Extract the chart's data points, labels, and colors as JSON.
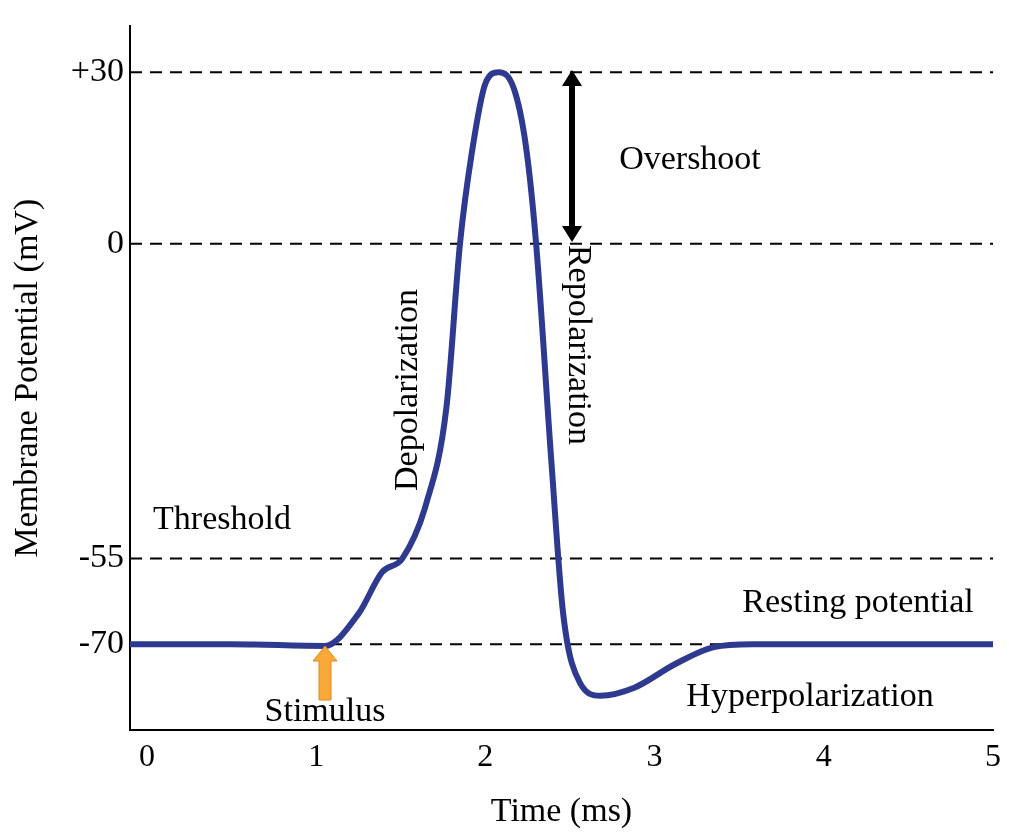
{
  "chart_data": {
    "type": "line",
    "xlabel": "Time (ms)",
    "ylabel": "Membrane Potential (mV)",
    "x": [
      -0.1,
      0.5,
      1.05,
      1.25,
      1.39,
      1.51,
      1.65,
      1.77,
      1.85,
      1.92,
      2.0,
      2.08,
      2.17,
      2.24,
      2.3,
      2.39,
      2.46,
      2.56,
      2.68,
      2.88,
      3.12,
      3.35,
      3.58,
      4.3,
      5.0
    ],
    "series": [
      {
        "color": "#2e3a8f",
        "values": [
          -70,
          -70,
          -70.3,
          -64.7,
          -57.4,
          -55,
          -45.5,
          -28.6,
          0,
          15.9,
          28,
          30,
          27,
          17,
          0,
          -38,
          -64.7,
          -76.8,
          -79,
          -77.6,
          -73.5,
          -70.5,
          -70,
          -70,
          -70
        ]
      }
    ],
    "xlim": [
      -0.1,
      5
    ],
    "ylim": [
      -85,
      38
    ],
    "xticks": [
      0,
      1,
      2,
      3,
      4,
      5
    ],
    "yticks": [
      {
        "value": 30,
        "label": "+30"
      },
      0,
      -55,
      -70
    ],
    "grid": false,
    "legend": false,
    "marker": "none",
    "line_style": "solid",
    "ref_lines": [
      {
        "axis": "y",
        "value": 30,
        "color": "#000000",
        "line_style": "dashed"
      },
      {
        "axis": "y",
        "value": 0,
        "color": "#000000",
        "line_style": "dashed"
      },
      {
        "axis": "y",
        "value": -55,
        "color": "#000000",
        "line_style": "dashed"
      },
      {
        "axis": "y",
        "value": -70,
        "color": "#000000",
        "line_style": "dashed"
      }
    ],
    "annotations": [
      "Overshoot",
      "Depolarization",
      "Repolarization",
      "Threshold",
      "Resting potential",
      "Hyperpolarization",
      "Stimulus"
    ]
  }
}
